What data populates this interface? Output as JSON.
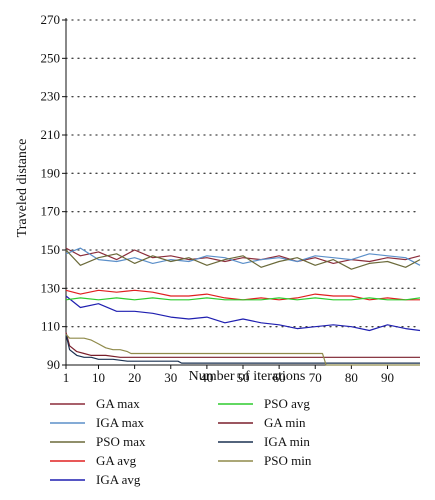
{
  "chart_data": {
    "type": "line",
    "xlabel": "Number of iterations",
    "ylabel": "Traveled distance",
    "xlim": [
      1,
      99
    ],
    "ylim": [
      90,
      270
    ],
    "x_ticks": [
      1,
      10,
      20,
      30,
      40,
      50,
      60,
      70,
      80,
      90
    ],
    "y_ticks": [
      90,
      110,
      130,
      150,
      170,
      190,
      210,
      230,
      250,
      270
    ],
    "grid": "horizontal-dotted",
    "legend_position": "bottom",
    "colors": {
      "GA max": "#8b2c3a",
      "IGA max": "#5b8fc9",
      "PSO max": "#6b6a3a",
      "GA avg": "#e02020",
      "IGA avg": "#1f1fb0",
      "PSO avg": "#2ecc2e",
      "GA min": "#7a1f2b",
      "IGA min": "#1a3050",
      "PSO min": "#8f8a4a"
    },
    "series": [
      {
        "name": "GA max",
        "x": [
          1,
          5,
          10,
          15,
          20,
          25,
          30,
          35,
          40,
          45,
          50,
          55,
          60,
          65,
          70,
          75,
          80,
          85,
          90,
          95,
          99
        ],
        "values": [
          151,
          147,
          149,
          145,
          150,
          146,
          147,
          145,
          146,
          144,
          146,
          145,
          147,
          144,
          146,
          143,
          145,
          144,
          146,
          145,
          147
        ]
      },
      {
        "name": "IGA max",
        "x": [
          1,
          5,
          10,
          15,
          20,
          25,
          30,
          35,
          40,
          45,
          50,
          55,
          60,
          65,
          70,
          75,
          80,
          85,
          90,
          95,
          99
        ],
        "values": [
          148,
          151,
          145,
          144,
          146,
          143,
          145,
          144,
          147,
          146,
          143,
          145,
          146,
          144,
          147,
          146,
          145,
          148,
          147,
          146,
          142
        ]
      },
      {
        "name": "PSO max",
        "x": [
          1,
          5,
          10,
          15,
          20,
          25,
          30,
          35,
          40,
          45,
          50,
          55,
          60,
          65,
          70,
          75,
          80,
          85,
          90,
          95,
          99
        ],
        "values": [
          150,
          142,
          146,
          148,
          143,
          147,
          144,
          146,
          142,
          145,
          147,
          141,
          144,
          146,
          142,
          145,
          140,
          143,
          144,
          141,
          145
        ]
      },
      {
        "name": "GA avg",
        "x": [
          1,
          5,
          10,
          15,
          20,
          25,
          30,
          35,
          40,
          45,
          50,
          55,
          60,
          65,
          70,
          75,
          80,
          85,
          90,
          95,
          99
        ],
        "values": [
          129,
          127,
          129,
          128,
          129,
          128,
          126,
          126,
          127,
          125,
          124,
          125,
          124,
          125,
          127,
          126,
          126,
          124,
          125,
          124,
          124
        ]
      },
      {
        "name": "IGA avg",
        "x": [
          1,
          5,
          10,
          15,
          20,
          25,
          30,
          35,
          40,
          45,
          50,
          55,
          60,
          65,
          70,
          75,
          80,
          85,
          90,
          95,
          99
        ],
        "values": [
          126,
          120,
          122,
          118,
          118,
          117,
          115,
          114,
          115,
          112,
          114,
          112,
          111,
          109,
          110,
          111,
          110,
          108,
          111,
          109,
          108
        ]
      },
      {
        "name": "PSO avg",
        "x": [
          1,
          5,
          10,
          15,
          20,
          25,
          30,
          35,
          40,
          45,
          50,
          55,
          60,
          65,
          70,
          75,
          80,
          85,
          90,
          95,
          99
        ],
        "values": [
          124,
          125,
          124,
          125,
          124,
          125,
          124,
          124,
          125,
          124,
          124,
          124,
          125,
          124,
          125,
          124,
          124,
          125,
          124,
          124,
          125
        ]
      },
      {
        "name": "GA min",
        "x": [
          1,
          2,
          4,
          6,
          8,
          12,
          16,
          20,
          30,
          40,
          50,
          60,
          70,
          80,
          90,
          99
        ],
        "values": [
          107,
          100,
          97,
          96,
          95,
          95,
          94,
          94,
          94,
          94,
          94,
          94,
          94,
          94,
          94,
          94
        ]
      },
      {
        "name": "IGA min",
        "x": [
          1,
          2,
          4,
          6,
          8,
          10,
          14,
          18,
          25,
          32,
          33,
          50,
          70,
          90,
          99
        ],
        "values": [
          106,
          98,
          95,
          94,
          94,
          93,
          93,
          92,
          92,
          92,
          91,
          91,
          91,
          91,
          91
        ]
      },
      {
        "name": "PSO min",
        "x": [
          1,
          2,
          4,
          6,
          8,
          10,
          12,
          14,
          16,
          18,
          19,
          30,
          50,
          70,
          72,
          73,
          80,
          90,
          99
        ],
        "values": [
          106,
          104,
          104,
          104,
          103,
          101,
          99,
          98,
          98,
          97,
          96,
          96,
          96,
          96,
          96,
          90,
          90,
          90,
          90
        ]
      }
    ],
    "legend": [
      [
        "GA max",
        "PSO avg"
      ],
      [
        "IGA max",
        "GA min"
      ],
      [
        "PSO max",
        "IGA min"
      ],
      [
        "GA avg",
        "PSO min"
      ],
      [
        "IGA avg",
        null
      ]
    ]
  }
}
